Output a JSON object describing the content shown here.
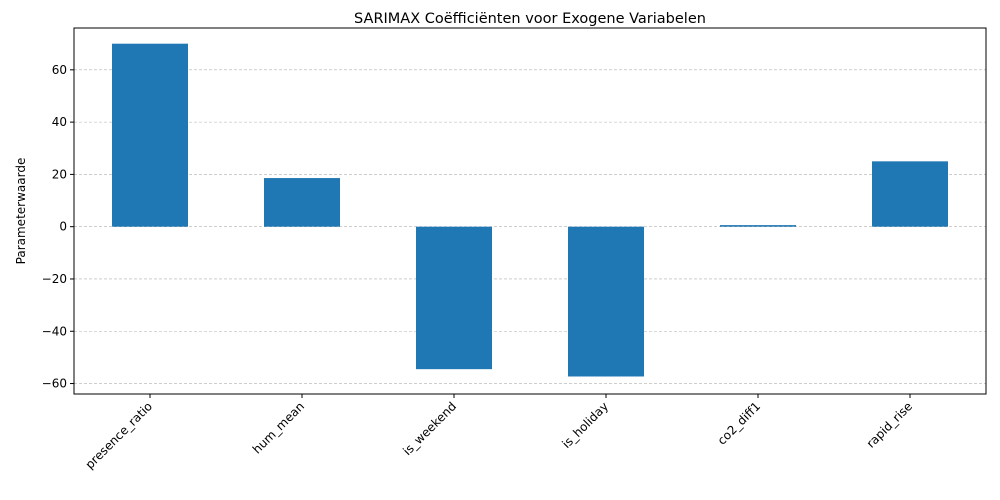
{
  "chart_data": {
    "type": "bar",
    "title": "SARIMAX Coëfficiënten voor Exogene Variabelen",
    "xlabel": "",
    "ylabel": "Parameterwaarde",
    "categories": [
      "presence_ratio",
      "hum_mean",
      "is_weekend",
      "is_holiday",
      "co2_diff1",
      "rapid_rise"
    ],
    "values": [
      70.0,
      18.6,
      -54.5,
      -57.3,
      0.6,
      25.0
    ],
    "ylim": [
      -64,
      76
    ],
    "yticks": [
      -60,
      -40,
      -20,
      0,
      20,
      40,
      60
    ],
    "ytick_labels": [
      "−60",
      "−40",
      "−20",
      "0",
      "20",
      "40",
      "60"
    ],
    "grid": "y-dashed",
    "legend": "none",
    "bar_color": "#1f77b4"
  }
}
